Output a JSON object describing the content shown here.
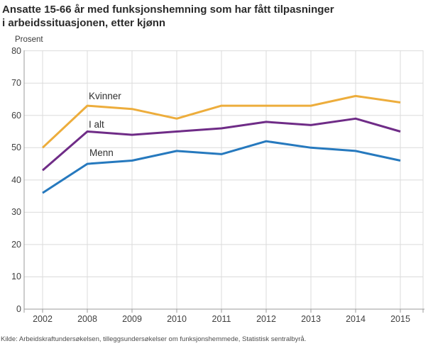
{
  "header": {
    "title_line1": "Ansatte 15-66 år med funksjonshemning som har fått tilpasninger",
    "title_line2": "i arbeidssituasjonen, etter kjønn"
  },
  "source": "Kilde: Arbeidskraftundersøkelsen, tilleggsundersøkelser om funksjonshemmede, Statistisk sentralbyrå.",
  "colors": {
    "kvinner_line": "#EDAD3C",
    "i_alt_line": "#6F2C87",
    "menn_line": "#2679BE",
    "gridline": "#DBDBDB",
    "axis": "#9B9B9B",
    "title_text": "#2b2b2b",
    "tick_text": "#3f3f3f"
  },
  "chart_data": {
    "type": "line",
    "title": "Ansatte 15-66 år med funksjonshemning som har fått tilpasninger i arbeidssituasjonen, etter kjønn",
    "xlabel": "",
    "ylabel": "Prosent",
    "ylim": [
      0,
      80
    ],
    "ytick_step": 10,
    "ytick_labels": [
      "80",
      "70",
      "60",
      "50",
      "40",
      "30",
      "20",
      "10",
      "0"
    ],
    "grid": true,
    "legend_position": "inline-labels-near-2008",
    "categories": [
      "2002",
      "2008",
      "2009",
      "2010",
      "2011",
      "2012",
      "2013",
      "2014",
      "2015"
    ],
    "series": [
      {
        "name": "Kvinner",
        "color": "#EDAD3C",
        "values": [
          50,
          63,
          62,
          59,
          63,
          63,
          63,
          66,
          64
        ]
      },
      {
        "name": "I alt",
        "color": "#6F2C87",
        "values": [
          43,
          55,
          54,
          55,
          56,
          58,
          57,
          59,
          55
        ]
      },
      {
        "name": "Menn",
        "color": "#2679BE",
        "values": [
          36,
          45,
          46,
          49,
          48,
          52,
          50,
          49,
          46
        ]
      }
    ]
  }
}
